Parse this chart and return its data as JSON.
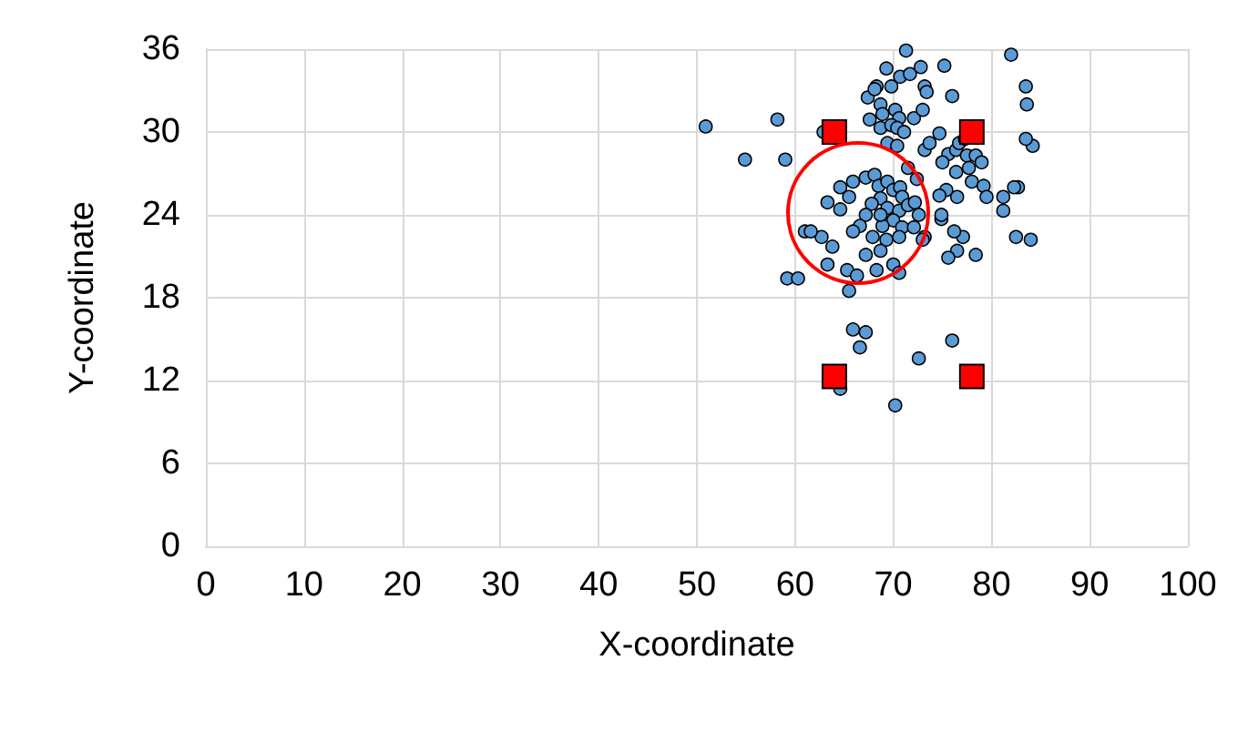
{
  "chart_data": {
    "type": "scatter",
    "xlabel": "X-coordinate",
    "ylabel": "Y-coordinate",
    "xlim": [
      0,
      100
    ],
    "xticks": [
      0,
      10,
      20,
      30,
      40,
      50,
      60,
      70,
      80,
      90,
      100
    ],
    "ylim": [
      0,
      36
    ],
    "yticks": [
      0,
      6,
      12,
      18,
      24,
      30,
      36
    ],
    "grid": true,
    "series": [
      {
        "marker": "circle",
        "color": "#5b9bd5",
        "x": [
          50.9,
          54.9,
          58.2,
          59.0,
          62.9,
          71.3,
          69.3,
          68.3,
          69.8,
          70.7,
          71.7,
          72.8,
          73.2,
          67.4,
          68.7,
          70.2,
          67.6,
          68.7,
          70.6,
          72.1,
          69.8,
          68.9,
          68.1,
          70.4,
          71.1,
          73.4,
          76.0,
          73.0,
          73.2,
          73.7,
          74.7,
          75.6,
          76.4,
          76.7,
          77.3,
          77.5,
          78.4,
          79.0,
          77.7,
          75.0,
          76.4,
          78.0,
          79.2,
          79.5,
          81.2,
          82.7,
          82.0,
          83.5,
          83.6,
          84.2,
          82.3,
          81.2,
          76.5,
          77.1,
          76.5,
          75.6,
          78.4,
          76.2,
          74.9,
          82.5,
          84.0,
          73.2,
          83.5,
          75.2,
          75.4,
          74.7,
          72.4,
          71.5,
          69.4,
          70.4,
          67.2,
          68.1,
          68.5,
          69.4,
          70.0,
          70.7,
          70.9,
          68.7,
          67.8,
          69.4,
          70.6,
          71.5,
          72.2,
          70.0,
          68.9,
          70.9,
          72.1,
          67.9,
          69.3,
          70.6,
          67.2,
          68.7,
          70.0,
          65.9,
          65.5,
          64.6,
          64.6,
          63.3,
          62.7,
          63.8,
          63.3,
          65.3,
          66.3,
          68.3,
          70.6,
          61.0,
          61.6,
          59.2,
          60.3,
          65.5,
          65.9,
          66.6,
          67.2,
          64.6,
          70.2,
          72.6,
          76.0,
          73.0,
          74.9,
          72.6,
          68.7,
          67.2,
          66.6,
          65.9
        ],
        "values": [
          30.4,
          28.0,
          30.9,
          28.0,
          30.0,
          35.9,
          34.6,
          33.3,
          33.3,
          34.0,
          34.2,
          34.7,
          33.3,
          32.5,
          32.0,
          31.6,
          30.9,
          30.3,
          31.0,
          31.0,
          30.5,
          31.3,
          33.1,
          30.3,
          30.0,
          32.9,
          32.6,
          31.6,
          28.7,
          29.2,
          29.9,
          28.4,
          28.7,
          29.2,
          29.5,
          28.3,
          28.3,
          27.8,
          27.4,
          27.8,
          27.1,
          26.4,
          26.1,
          25.3,
          25.3,
          26.0,
          35.6,
          33.3,
          32.0,
          29.0,
          26.0,
          24.3,
          25.3,
          22.4,
          21.4,
          20.9,
          21.1,
          22.8,
          23.7,
          22.4,
          22.2,
          22.4,
          29.5,
          34.8,
          25.8,
          25.4,
          26.6,
          27.4,
          29.2,
          29.0,
          26.7,
          26.9,
          26.1,
          26.4,
          25.8,
          26.0,
          25.3,
          25.2,
          24.8,
          24.5,
          24.3,
          24.7,
          24.9,
          23.6,
          23.2,
          23.1,
          23.1,
          22.4,
          22.2,
          22.4,
          21.1,
          21.4,
          20.4,
          26.4,
          25.3,
          24.4,
          26.0,
          24.9,
          22.4,
          21.7,
          20.4,
          20.0,
          19.6,
          20.0,
          19.8,
          22.8,
          22.8,
          19.4,
          19.4,
          18.5,
          15.7,
          14.4,
          15.5,
          11.4,
          10.2,
          13.6,
          14.9,
          22.2,
          24.0,
          24.0,
          24.0,
          24.0,
          23.2,
          22.8
        ]
      },
      {
        "marker": "square",
        "color": "#ff0000",
        "x": [
          64,
          78,
          64,
          78
        ],
        "values": [
          30,
          30,
          12.3,
          12.3
        ]
      }
    ]
  }
}
